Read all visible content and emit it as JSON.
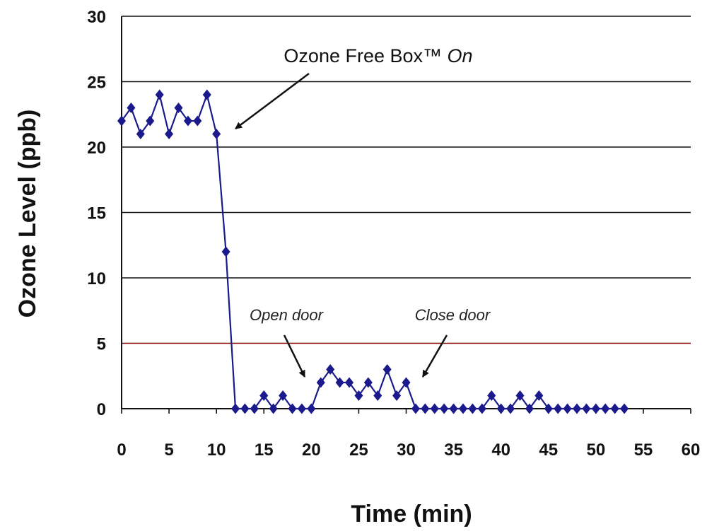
{
  "chart_data": {
    "type": "line",
    "title": "",
    "xlabel": "Time (min)",
    "ylabel": "Ozone Level (ppb)",
    "xlim": [
      0,
      60
    ],
    "ylim": [
      0,
      30
    ],
    "x_ticks": [
      "0",
      "5",
      "10",
      "15",
      "20",
      "25",
      "30",
      "35",
      "40",
      "45",
      "50",
      "55",
      "60"
    ],
    "y_ticks": [
      "0",
      "5",
      "10",
      "15",
      "20",
      "25",
      "30"
    ],
    "grid": "horizontal",
    "reference_line": {
      "y": 5,
      "color": "#8b0000"
    },
    "series": [
      {
        "color": "#1a1a8c",
        "marker": "diamond",
        "x": [
          0,
          1,
          2,
          3,
          4,
          5,
          6,
          7,
          8,
          9,
          10,
          11,
          12,
          13,
          14,
          15,
          16,
          17,
          18,
          19,
          20,
          21,
          22,
          23,
          24,
          25,
          26,
          27,
          28,
          29,
          30,
          31,
          32,
          33,
          34,
          35,
          36,
          37,
          38,
          39,
          40,
          41,
          42,
          43,
          44,
          45,
          46,
          47,
          48,
          49,
          50,
          51,
          52,
          53
        ],
        "y": [
          22,
          23,
          21,
          22,
          24,
          21,
          23,
          22,
          22,
          24,
          21,
          12,
          0,
          0,
          0,
          1,
          0,
          1,
          0,
          0,
          0,
          2,
          3,
          2,
          2,
          1,
          2,
          1,
          3,
          1,
          2,
          0,
          0,
          0,
          0,
          0,
          0,
          0,
          0,
          1,
          0,
          0,
          1,
          0,
          1,
          0,
          0,
          0,
          0,
          0,
          0,
          0,
          0,
          0
        ]
      }
    ],
    "annotations": [
      {
        "text_main": "Ozone Free Box™ ",
        "text_italic": "On",
        "points_to": [
          10,
          21
        ]
      },
      {
        "text": "Open door",
        "points_to": [
          20,
          2
        ]
      },
      {
        "text": "Close door",
        "points_to": [
          31,
          2
        ]
      }
    ]
  }
}
